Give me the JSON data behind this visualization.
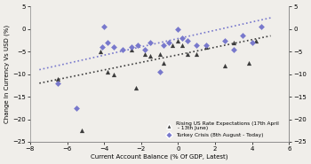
{
  "xlabel": "Current Account Balance (% Of GDP, Latest)",
  "ylabel": "Change In Currency Vs USD (%)",
  "xlim": [
    -8,
    6
  ],
  "ylim": [
    -25,
    5
  ],
  "yticks": [
    5,
    0,
    -5,
    -10,
    -15,
    -20,
    -25
  ],
  "xticks": [
    -8,
    -6,
    -4,
    -2,
    0,
    2,
    4,
    6
  ],
  "triangles_x": [
    -6.5,
    -5.2,
    -4.2,
    -3.8,
    -3.5,
    -2.5,
    -2.3,
    -1.8,
    -1.5,
    -1.0,
    -0.8,
    -0.3,
    0.0,
    0.2,
    0.5,
    1.0,
    1.5,
    2.5,
    3.0,
    3.8,
    4.2
  ],
  "triangles_y": [
    -11.0,
    -22.5,
    -5.0,
    -9.5,
    -10.0,
    -4.5,
    -13.0,
    -5.5,
    -6.0,
    -5.5,
    -7.5,
    -3.5,
    -2.5,
    -3.5,
    -5.5,
    -5.5,
    -4.0,
    -8.0,
    -3.0,
    -7.5,
    -2.5
  ],
  "diamonds_x": [
    -6.5,
    -5.5,
    -4.1,
    -4.0,
    -3.8,
    -3.5,
    -3.0,
    -2.5,
    -2.2,
    -1.8,
    -1.5,
    -1.0,
    -0.8,
    -0.5,
    0.0,
    0.2,
    0.5,
    1.0,
    1.5,
    2.5,
    3.0,
    3.5,
    4.0,
    4.5
  ],
  "diamonds_y": [
    -12.0,
    -17.5,
    -4.0,
    0.5,
    -3.0,
    -4.0,
    -4.5,
    -4.0,
    -3.5,
    -4.5,
    -3.0,
    -9.5,
    -3.5,
    -3.0,
    0.0,
    -2.0,
    -2.5,
    -3.5,
    -3.5,
    -2.5,
    -4.5,
    -1.5,
    -3.0,
    0.5
  ],
  "trendline1_x": [
    -7.5,
    5.0
  ],
  "trendline1_y": [
    -12.0,
    -1.5
  ],
  "trendline2_x": [
    -7.5,
    5.0
  ],
  "trendline2_y": [
    -9.0,
    2.5
  ],
  "color_triangles": "#3d3d3d",
  "color_diamonds": "#7878cc",
  "color_trendline1": "#3d3d3d",
  "color_trendline2": "#7878cc",
  "legend_label1": "Rising US Rate Expectations (17th April\n - 13th June)",
  "legend_label2": "Turkey Crisis (8th August - Today)",
  "bg_color": "#f0eeea"
}
